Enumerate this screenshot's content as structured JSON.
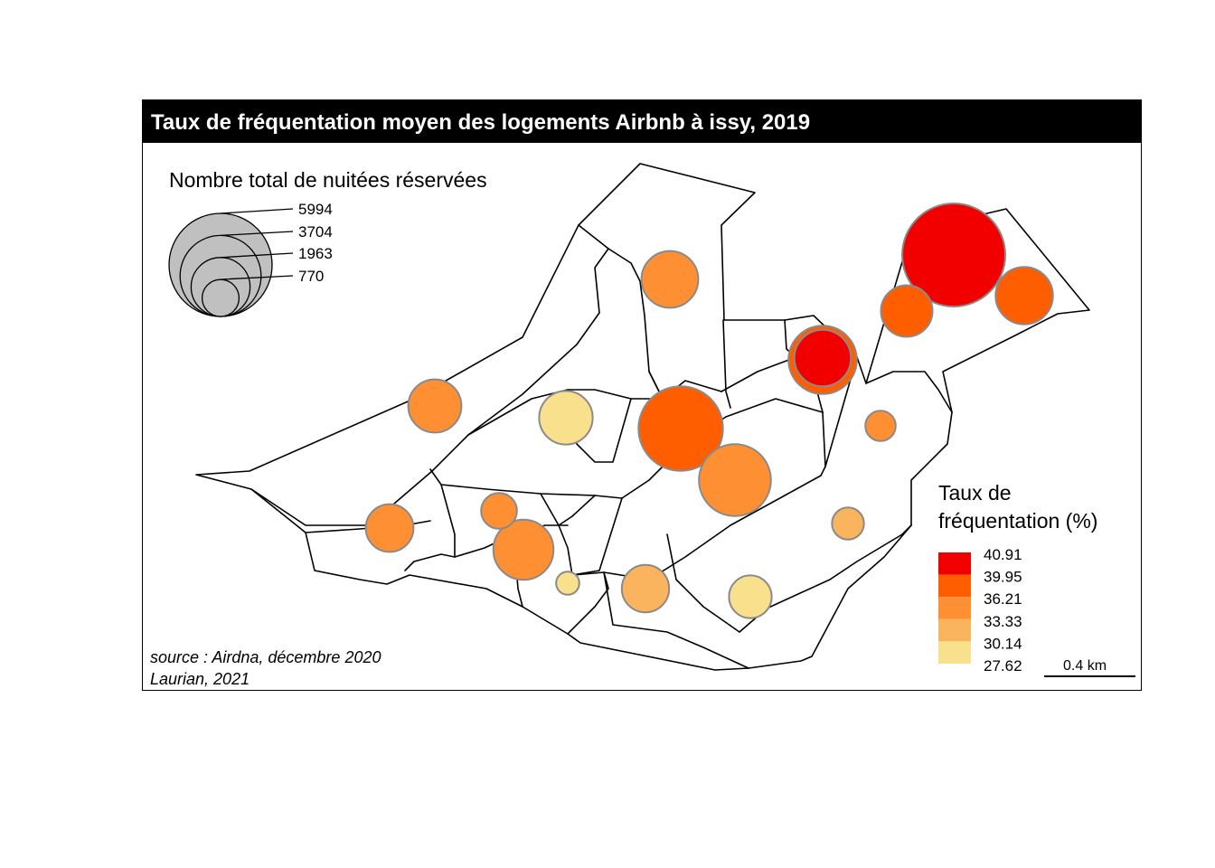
{
  "title": "Taux de fréquentation moyen des logements Airbnb à issy, 2019",
  "size_legend": {
    "title": "Nombre total de nuitées réservées",
    "values": [
      5994,
      3704,
      1963,
      770
    ]
  },
  "color_legend": {
    "title_line1": "Taux de",
    "title_line2": "fréquentation (%)",
    "breaks": [
      "40.91",
      "39.95",
      "36.21",
      "33.33",
      "30.14",
      "27.62"
    ],
    "colors": [
      "#f20000",
      "#ff5e00",
      "#ff8f33",
      "#fbb45e",
      "#f8e08c"
    ]
  },
  "source": "source : Airdna, décembre 2020",
  "author": "Laurian, 2021",
  "scale_bar": "0.4 km",
  "symbol_stroke": "#8a8a8a",
  "legend_fill": "#c0c0c0",
  "symbols": [
    {
      "nights": 5994,
      "rate_class": 0
    },
    {
      "nights": 1500,
      "rate_class": 1
    },
    {
      "nights": 2630,
      "rate_class": 1
    },
    {
      "nights": 1850,
      "rate_class": 1
    },
    {
      "nights": 1810,
      "rate_class": 0
    },
    {
      "nights": 4030,
      "rate_class": 1
    },
    {
      "nights": 2920,
      "rate_class": 2
    },
    {
      "nights": 1815,
      "rate_class": 2
    },
    {
      "nights": 1620,
      "rate_class": 4
    },
    {
      "nights": 1600,
      "rate_class": 2
    },
    {
      "nights": 520,
      "rate_class": 2
    },
    {
      "nights": 1290,
      "rate_class": 2
    },
    {
      "nights": 720,
      "rate_class": 2
    },
    {
      "nights": 2050,
      "rate_class": 2
    },
    {
      "nights": 580,
      "rate_class": 3
    },
    {
      "nights": 300,
      "rate_class": 4
    },
    {
      "nights": 1270,
      "rate_class": 3
    },
    {
      "nights": 1030,
      "rate_class": 4
    }
  ]
}
